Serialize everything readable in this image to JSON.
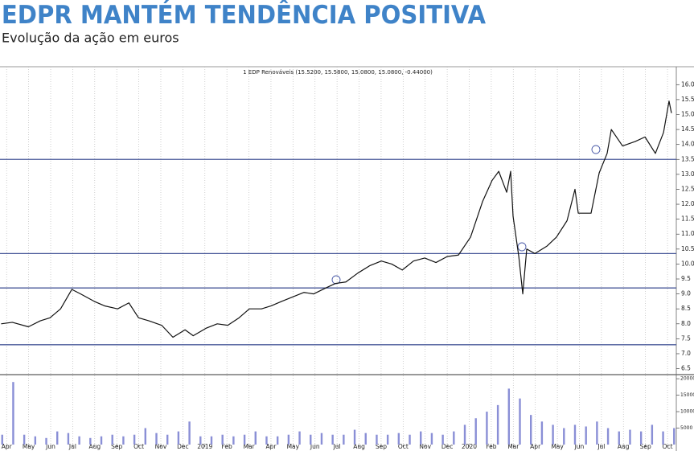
{
  "chart_data": {
    "type": "line",
    "title": "EDPR MANTÉM TENDÊNCIA POSITIVA",
    "subtitle": "Evolução da ação em euros",
    "annotation": "1 EDP Renováveis (15.5200, 15.5800, 15.0800, 15.0800, -0.44000)",
    "categories": [
      "Apr",
      "May",
      "Jun",
      "Jul",
      "Aug",
      "Sep",
      "Oct",
      "Nov",
      "Dec",
      "2019",
      "Feb",
      "Mar",
      "Apr",
      "May",
      "Jun",
      "Jul",
      "Aug",
      "Sep",
      "Oct",
      "Nov",
      "Dec",
      "2020",
      "Feb",
      "Mar",
      "Apr",
      "May",
      "Jun",
      "Jul",
      "Aug",
      "Sep",
      "Oct"
    ],
    "xlim": [
      -0.3,
      30.4
    ],
    "grid": true,
    "ylim": [
      6.3,
      16.6
    ],
    "yticks": [
      {
        "value": 6.5,
        "label": "6.5"
      },
      {
        "value": 7,
        "label": "7.0"
      },
      {
        "value": 7.5,
        "label": "7.5"
      },
      {
        "value": 8,
        "label": "8.0"
      },
      {
        "value": 8.5,
        "label": "8.5"
      },
      {
        "value": 9,
        "label": "9.0"
      },
      {
        "value": 9.5,
        "label": "9.5"
      },
      {
        "value": 10,
        "label": "10.0"
      },
      {
        "value": 10.5,
        "label": "10.5"
      },
      {
        "value": 11,
        "label": "11.0"
      },
      {
        "value": 11.5,
        "label": "11.5"
      },
      {
        "value": 12,
        "label": "12.0"
      },
      {
        "value": 12.5,
        "label": "12.5"
      },
      {
        "value": 13,
        "label": "13.0"
      },
      {
        "value": 13.5,
        "label": "13.5"
      },
      {
        "value": 14,
        "label": "14.0"
      },
      {
        "value": 14.5,
        "label": "14.5"
      },
      {
        "value": 15,
        "label": "15.0"
      },
      {
        "value": 15.5,
        "label": "15.5"
      },
      {
        "value": 16,
        "label": "16.0"
      }
    ],
    "hlines": [
      13.5,
      10.35,
      9.2,
      7.3
    ],
    "hline_color": "#4a5a9a",
    "y2lim": [
      0,
      21000
    ],
    "y2ticks": [
      5000,
      10000,
      15000,
      20000
    ],
    "series": [
      {
        "type": "line",
        "color": "#111111",
        "x": [
          -0.25,
          0.26,
          0.99,
          1.53,
          1.97,
          2.45,
          2.96,
          3.36,
          3.98,
          4.45,
          5.04,
          5.55,
          5.99,
          6.46,
          7.04,
          7.55,
          8.1,
          8.47,
          9.05,
          9.56,
          10.04,
          10.55,
          11.02,
          11.57,
          12.01,
          12.48,
          12.99,
          13.5,
          13.94,
          14.49,
          14.93,
          15.4,
          15.95,
          16.5,
          17.01,
          17.48,
          17.96,
          18.47,
          18.98,
          19.49,
          20.0,
          20.51,
          21.06,
          21.61,
          22.04,
          22.34,
          22.7,
          22.88,
          22.99,
          23.25,
          23.43,
          23.61,
          23.98,
          24.53,
          24.96,
          25.44,
          25.8,
          25.95,
          26.53,
          26.9,
          27.26,
          27.45,
          27.96,
          28.54,
          28.98,
          29.45,
          29.82,
          30.07,
          30.18
        ],
        "values": [
          8.0,
          8.05,
          7.9,
          8.1,
          8.2,
          8.5,
          9.15,
          9.0,
          8.75,
          8.6,
          8.5,
          8.7,
          8.2,
          8.1,
          7.95,
          7.55,
          7.8,
          7.6,
          7.85,
          8.0,
          7.95,
          8.2,
          8.5,
          8.5,
          8.6,
          8.75,
          8.9,
          9.05,
          9.0,
          9.2,
          9.35,
          9.4,
          9.7,
          9.95,
          10.1,
          10.0,
          9.8,
          10.1,
          10.2,
          10.05,
          10.25,
          10.3,
          10.9,
          12.1,
          12.8,
          13.1,
          12.4,
          13.1,
          11.6,
          10.25,
          9.0,
          10.5,
          10.35,
          10.6,
          10.9,
          11.45,
          12.5,
          11.7,
          11.7,
          13.05,
          13.7,
          14.5,
          13.95,
          14.1,
          14.25,
          13.7,
          14.4,
          15.45,
          15.05
        ]
      },
      {
        "type": "bar",
        "axis": "y2",
        "color": "#8a8fd6",
        "x": [
          -0.2,
          0.3,
          0.8,
          1.3,
          1.8,
          2.3,
          2.8,
          3.3,
          3.8,
          4.3,
          4.8,
          5.3,
          5.8,
          6.3,
          6.8,
          7.3,
          7.8,
          8.3,
          8.8,
          9.3,
          9.8,
          10.3,
          10.8,
          11.3,
          11.8,
          12.3,
          12.8,
          13.3,
          13.8,
          14.3,
          14.8,
          15.3,
          15.8,
          16.3,
          16.8,
          17.3,
          17.8,
          18.3,
          18.8,
          19.3,
          19.8,
          20.3,
          20.8,
          21.3,
          21.8,
          22.3,
          22.8,
          23.3,
          23.8,
          24.3,
          24.8,
          25.3,
          25.8,
          26.3,
          26.8,
          27.3,
          27.8,
          28.3,
          28.8,
          29.3,
          29.8,
          30.3
        ],
        "values": [
          3000,
          19000,
          3000,
          2500,
          2000,
          4000,
          3500,
          2500,
          2000,
          2500,
          3000,
          2500,
          3000,
          5000,
          3500,
          3000,
          4000,
          7000,
          2500,
          2500,
          3000,
          2500,
          3000,
          4000,
          2500,
          2500,
          3000,
          4000,
          3000,
          3500,
          3000,
          3000,
          4500,
          3500,
          3000,
          3000,
          3500,
          3000,
          4000,
          3500,
          3000,
          4000,
          6000,
          8000,
          10000,
          12000,
          17000,
          14000,
          9000,
          7000,
          6000,
          5000,
          6000,
          5500,
          7000,
          5000,
          4000,
          4500,
          4000,
          6000,
          4000,
          5000
        ]
      }
    ]
  }
}
